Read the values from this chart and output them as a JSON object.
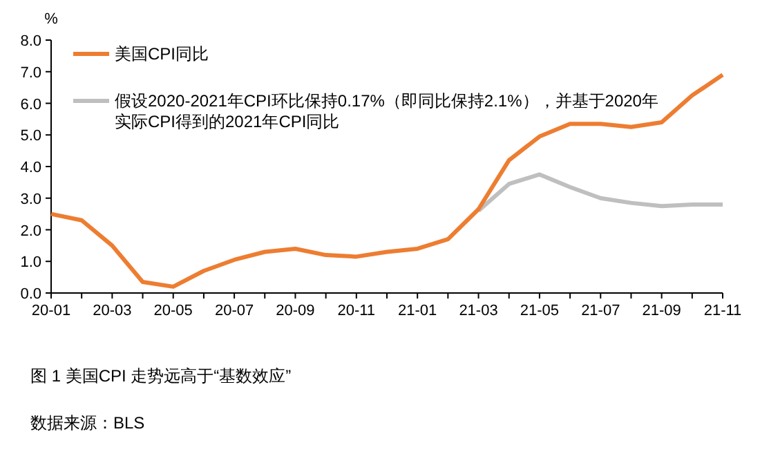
{
  "chart_data": {
    "type": "line",
    "ylabel": "%",
    "categories": [
      "20-01",
      null,
      "20-03",
      null,
      "20-05",
      null,
      "20-07",
      null,
      "20-09",
      null,
      "20-11",
      null,
      "21-01",
      null,
      "21-03",
      null,
      "21-05",
      null,
      "21-07",
      null,
      "21-09",
      null,
      "21-11"
    ],
    "series": [
      {
        "name": "美国CPI同比",
        "color": "#ed7d31",
        "values": [
          2.5,
          2.3,
          1.5,
          0.35,
          0.2,
          0.7,
          1.05,
          1.3,
          1.4,
          1.2,
          1.15,
          1.3,
          1.4,
          1.7,
          2.65,
          4.2,
          4.95,
          5.35,
          5.35,
          5.25,
          5.4,
          6.25,
          6.9
        ]
      },
      {
        "name": "假设2020-2021年CPI环比保持0.17%（即同比保持2.1%），并基于2020年实际CPI得到的2021年CPI同比",
        "color": "#bfbfbf",
        "values": [
          null,
          null,
          null,
          null,
          null,
          null,
          null,
          null,
          null,
          null,
          null,
          null,
          null,
          null,
          2.6,
          3.45,
          3.75,
          3.35,
          3.0,
          2.85,
          2.75,
          2.8,
          2.8
        ]
      }
    ],
    "ylim": [
      0,
      8
    ],
    "yticks": [
      {
        "value": 0,
        "label": "0.0"
      },
      {
        "value": 1,
        "label": "1.0"
      },
      {
        "value": 2,
        "label": "2.0"
      },
      {
        "value": 3,
        "label": "3.0"
      },
      {
        "value": 4,
        "label": "4.0"
      },
      {
        "value": 5,
        "label": "5.0"
      },
      {
        "value": 6,
        "label": "6.0"
      },
      {
        "value": 7,
        "label": "7.0"
      },
      {
        "value": 8,
        "label": "8.0"
      }
    ],
    "grid": false,
    "legend": "top left",
    "marker": "none",
    "line_style": "solid",
    "annotations": [
      "图 1 美国CPI 走势远高于“基数效应”",
      "数据来源：BLS"
    ]
  }
}
